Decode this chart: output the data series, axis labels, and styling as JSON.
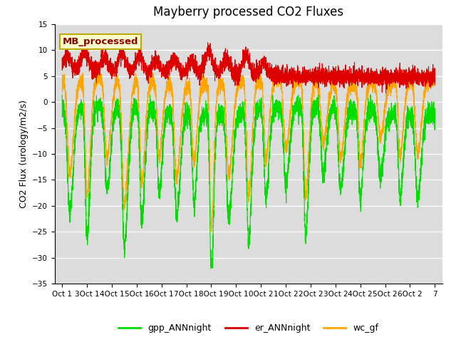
{
  "title": "Mayberry processed CO2 Fluxes",
  "ylabel": "CO2 Flux (urology/m2/s)",
  "ylim": [
    -35,
    15
  ],
  "yticks": [
    -35,
    -30,
    -25,
    -20,
    -15,
    -10,
    -5,
    0,
    5,
    10,
    15
  ],
  "color_green": "#00DD00",
  "color_red": "#DD0000",
  "color_orange": "#FFA500",
  "bg_color": "#DCDCDC",
  "legend_box_text": "MB_processed",
  "legend_box_bg": "#FFFFCC",
  "legend_box_edge": "#BBAA00",
  "legend_box_text_color": "#8B0000",
  "line_width": 0.8,
  "title_fontsize": 12,
  "label_fontsize": 9,
  "tick_fontsize": 7.5,
  "n_points": 4800,
  "seed": 7
}
